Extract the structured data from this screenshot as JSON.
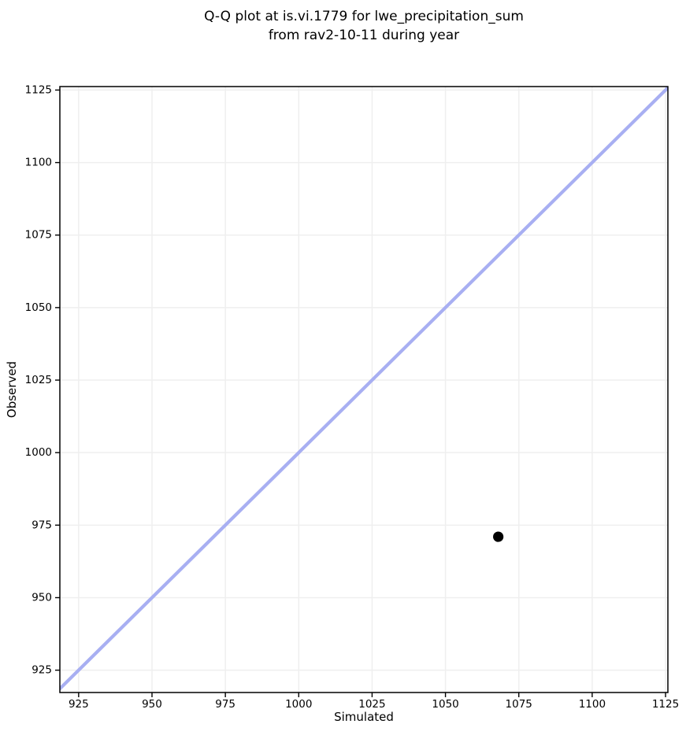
{
  "chart_data": {
    "type": "scatter",
    "title": "Q-Q plot at is.vi.1779 for lwe_precipitation_sum from rav2-10-11 during year",
    "title_lines": [
      "Q-Q plot at is.vi.1779 for lwe_precipitation_sum",
      "from rav2-10-11 during year"
    ],
    "xlabel": "Simulated",
    "ylabel": "Observed",
    "xlim": [
      918.6,
      1125.8
    ],
    "ylim": [
      917.3,
      1126.2
    ],
    "xticks": [
      925,
      950,
      975,
      1000,
      1025,
      1050,
      1075,
      1100,
      1125
    ],
    "yticks": [
      925,
      950,
      975,
      1000,
      1025,
      1050,
      1075,
      1100,
      1125
    ],
    "grid": true,
    "legend": "none",
    "series": [
      {
        "name": "identity-line",
        "type": "line",
        "color": "#a8aff2",
        "points": [
          {
            "x": 916,
            "y": 916
          },
          {
            "x": 1127,
            "y": 1127
          }
        ]
      },
      {
        "name": "quantile-point",
        "type": "scatter",
        "color": "#000000",
        "points": [
          {
            "x": 1068,
            "y": 971
          }
        ]
      }
    ],
    "colors": {
      "identity_line": "#a8aff2",
      "point": "#000000",
      "grid": "#efefef",
      "spine": "#000000",
      "background": "#ffffff",
      "text": "#000000"
    }
  }
}
